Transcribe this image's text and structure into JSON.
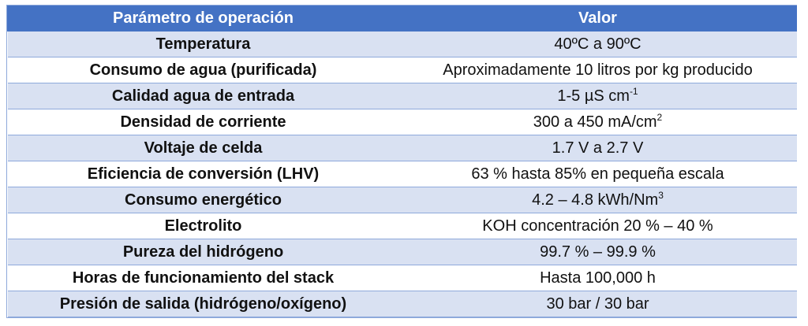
{
  "table": {
    "header": {
      "param": "Parámetro de operación",
      "value": "Valor"
    },
    "rows": [
      {
        "param": "Temperatura",
        "value": "40ºC a 90ºC",
        "sup": ""
      },
      {
        "param": "Consumo de agua (purificada)",
        "value": "Aproximadamente 10 litros por kg producido",
        "sup": ""
      },
      {
        "param": "Calidad agua de entrada",
        "value": "1-5 µS cm",
        "sup": "-1"
      },
      {
        "param": "Densidad de corriente",
        "value": "300 a 450 mA/cm",
        "sup": "2"
      },
      {
        "param": "Voltaje de celda",
        "value": "1.7 V a 2.7 V",
        "sup": ""
      },
      {
        "param": "Eficiencia de conversión (LHV)",
        "value": "63 % hasta 85% en pequeña escala",
        "sup": ""
      },
      {
        "param": "Consumo energético",
        "value": "4.2 – 4.8 kWh/Nm",
        "sup": "3"
      },
      {
        "param": "Electrolito",
        "value": "KOH concentración 20 % – 40 %",
        "sup": ""
      },
      {
        "param": "Pureza del hidrógeno",
        "value": "99.7 % – 99.9 %",
        "sup": ""
      },
      {
        "param": "Horas de funcionamiento del stack",
        "value": "Hasta 100,000 h",
        "sup": ""
      },
      {
        "param": "Presión de salida (hidrógeno/oxígeno)",
        "value": "30 bar / 30 bar",
        "sup": ""
      }
    ]
  },
  "colors": {
    "header_bg": "#4472c4",
    "band_bg": "#d9e1f2",
    "border": "#8ea9db"
  }
}
